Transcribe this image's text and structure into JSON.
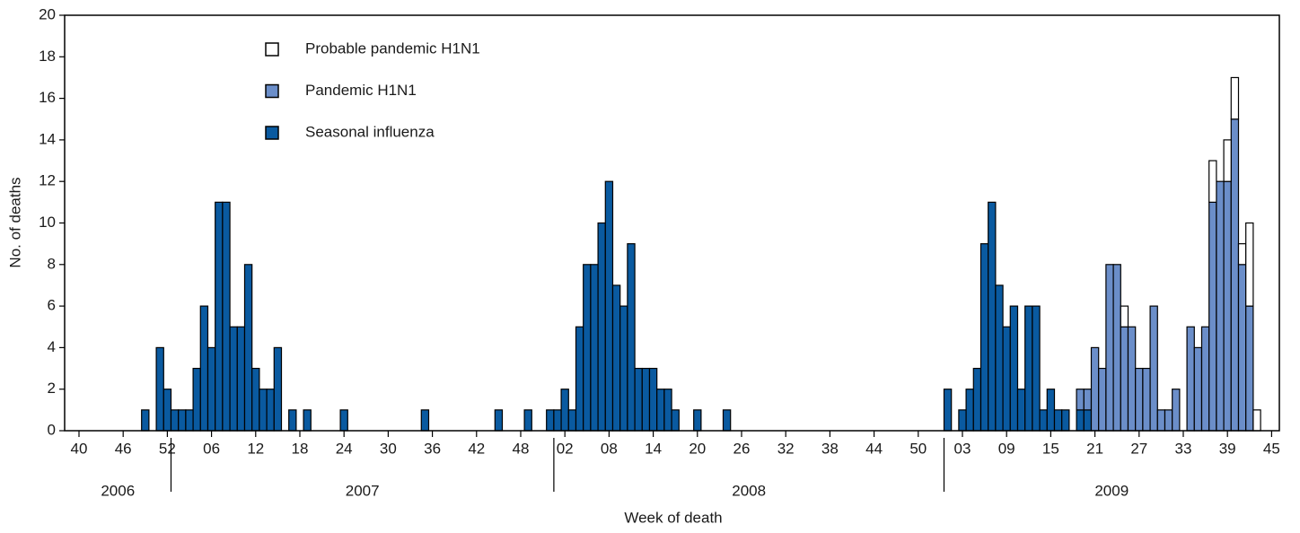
{
  "chart_data": {
    "type": "stacked_bar",
    "x_label": "Week of death",
    "y_label": "No. of deaths",
    "categories": [
      "40",
      null,
      null,
      null,
      null,
      null,
      "46",
      null,
      null,
      null,
      null,
      null,
      "52",
      null,
      null,
      null,
      null,
      null,
      "06",
      null,
      null,
      null,
      null,
      null,
      "12",
      null,
      null,
      null,
      null,
      null,
      "18",
      null,
      null,
      null,
      null,
      null,
      "24",
      null,
      null,
      null,
      null,
      null,
      "30",
      null,
      null,
      null,
      null,
      null,
      "36",
      null,
      null,
      null,
      null,
      null,
      "42",
      null,
      null,
      null,
      null,
      null,
      "48",
      null,
      null,
      null,
      null,
      null,
      "02",
      null,
      null,
      null,
      null,
      null,
      "08",
      null,
      null,
      null,
      null,
      null,
      "14",
      null,
      null,
      null,
      null,
      null,
      "20",
      null,
      null,
      null,
      null,
      null,
      "26",
      null,
      null,
      null,
      null,
      null,
      "32",
      null,
      null,
      null,
      null,
      null,
      "38",
      null,
      null,
      null,
      null,
      null,
      "44",
      null,
      null,
      null,
      null,
      null,
      "50",
      null,
      null,
      null,
      null,
      null,
      "03",
      null,
      null,
      null,
      null,
      null,
      "09",
      null,
      null,
      null,
      null,
      null,
      "15",
      null,
      null,
      null,
      null,
      null,
      "21",
      null,
      null,
      null,
      null,
      null,
      "27",
      null,
      null,
      null,
      null,
      null,
      "33",
      null,
      null,
      null,
      null,
      null,
      "39",
      null,
      null,
      null,
      null,
      null,
      "45"
    ],
    "year_labels": [
      "2006",
      "2007",
      "2008",
      "2009"
    ],
    "series": [
      {
        "name": "Seasonal influenza",
        "color": "#0a5aa0",
        "values": [
          0,
          0,
          0,
          0,
          0,
          0,
          0,
          0,
          0,
          1,
          0,
          4,
          2,
          1,
          1,
          1,
          3,
          6,
          4,
          11,
          11,
          5,
          5,
          8,
          3,
          2,
          2,
          4,
          0,
          1,
          0,
          1,
          0,
          0,
          0,
          0,
          1,
          0,
          0,
          0,
          0,
          0,
          0,
          0,
          0,
          0,
          0,
          1,
          0,
          0,
          0,
          0,
          0,
          0,
          0,
          0,
          0,
          1,
          0,
          0,
          0,
          1,
          0,
          0,
          1,
          1,
          2,
          1,
          5,
          8,
          8,
          10,
          12,
          7,
          6,
          9,
          3,
          3,
          3,
          2,
          2,
          1,
          0,
          0,
          1,
          0,
          0,
          0,
          1,
          0,
          0,
          0,
          0,
          0,
          0,
          0,
          0,
          0,
          0,
          0,
          0,
          0,
          0,
          0,
          0,
          0,
          0,
          0,
          0,
          0,
          0,
          0,
          0,
          0,
          0,
          0,
          0,
          0,
          2,
          0,
          1,
          2,
          3,
          9,
          11,
          7,
          5,
          6,
          2,
          6,
          6,
          1,
          2,
          1,
          1,
          0,
          1,
          1,
          0,
          0,
          0,
          0,
          0,
          0,
          0,
          0,
          0,
          0,
          0,
          0,
          0,
          0,
          0,
          0,
          0,
          0,
          0,
          0,
          0,
          0,
          0,
          0,
          0
        ]
      },
      {
        "name": "Pandemic H1N1",
        "color": "#6b8ec9",
        "values": [
          0,
          0,
          0,
          0,
          0,
          0,
          0,
          0,
          0,
          0,
          0,
          0,
          0,
          0,
          0,
          0,
          0,
          0,
          0,
          0,
          0,
          0,
          0,
          0,
          0,
          0,
          0,
          0,
          0,
          0,
          0,
          0,
          0,
          0,
          0,
          0,
          0,
          0,
          0,
          0,
          0,
          0,
          0,
          0,
          0,
          0,
          0,
          0,
          0,
          0,
          0,
          0,
          0,
          0,
          0,
          0,
          0,
          0,
          0,
          0,
          0,
          0,
          0,
          0,
          0,
          0,
          0,
          0,
          0,
          0,
          0,
          0,
          0,
          0,
          0,
          0,
          0,
          0,
          0,
          0,
          0,
          0,
          0,
          0,
          0,
          0,
          0,
          0,
          0,
          0,
          0,
          0,
          0,
          0,
          0,
          0,
          0,
          0,
          0,
          0,
          0,
          0,
          0,
          0,
          0,
          0,
          0,
          0,
          0,
          0,
          0,
          0,
          0,
          0,
          0,
          0,
          0,
          0,
          0,
          0,
          0,
          0,
          0,
          0,
          0,
          0,
          0,
          0,
          0,
          0,
          0,
          0,
          0,
          0,
          0,
          0,
          1,
          1,
          4,
          3,
          8,
          8,
          5,
          5,
          3,
          3,
          6,
          1,
          1,
          2,
          0,
          5,
          4,
          5,
          11,
          12,
          12,
          15,
          8,
          6,
          0,
          0,
          0
        ]
      },
      {
        "name": "Probable pandemic H1N1",
        "color": "#ffffff",
        "values": [
          0,
          0,
          0,
          0,
          0,
          0,
          0,
          0,
          0,
          0,
          0,
          0,
          0,
          0,
          0,
          0,
          0,
          0,
          0,
          0,
          0,
          0,
          0,
          0,
          0,
          0,
          0,
          0,
          0,
          0,
          0,
          0,
          0,
          0,
          0,
          0,
          0,
          0,
          0,
          0,
          0,
          0,
          0,
          0,
          0,
          0,
          0,
          0,
          0,
          0,
          0,
          0,
          0,
          0,
          0,
          0,
          0,
          0,
          0,
          0,
          0,
          0,
          0,
          0,
          0,
          0,
          0,
          0,
          0,
          0,
          0,
          0,
          0,
          0,
          0,
          0,
          0,
          0,
          0,
          0,
          0,
          0,
          0,
          0,
          0,
          0,
          0,
          0,
          0,
          0,
          0,
          0,
          0,
          0,
          0,
          0,
          0,
          0,
          0,
          0,
          0,
          0,
          0,
          0,
          0,
          0,
          0,
          0,
          0,
          0,
          0,
          0,
          0,
          0,
          0,
          0,
          0,
          0,
          0,
          0,
          0,
          0,
          0,
          0,
          0,
          0,
          0,
          0,
          0,
          0,
          0,
          0,
          0,
          0,
          0,
          0,
          0,
          0,
          0,
          0,
          0,
          0,
          1,
          0,
          0,
          0,
          0,
          0,
          0,
          0,
          0,
          0,
          0,
          0,
          2,
          0,
          2,
          2,
          1,
          4,
          1,
          0,
          0
        ]
      }
    ],
    "ylim": [
      0,
      20
    ],
    "yticks": [
      0,
      2,
      4,
      6,
      8,
      10,
      12,
      14,
      16,
      18,
      20
    ],
    "grid": false,
    "legend": "upper left"
  }
}
